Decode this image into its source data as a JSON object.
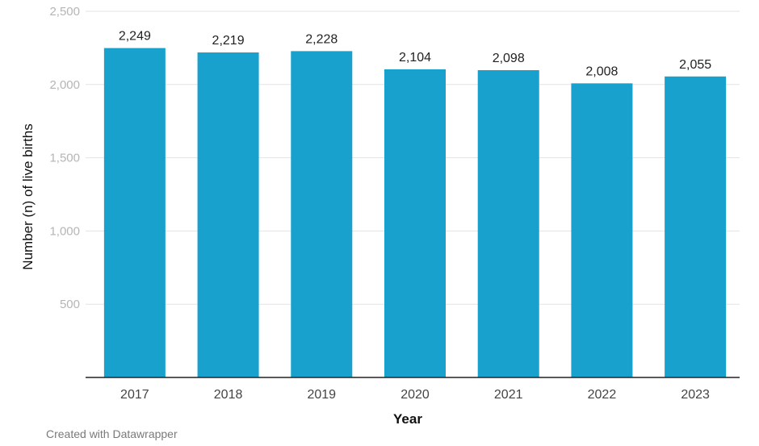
{
  "chart_data": {
    "type": "bar",
    "categories": [
      "2017",
      "2018",
      "2019",
      "2020",
      "2021",
      "2022",
      "2023"
    ],
    "values": [
      2249,
      2219,
      2228,
      2104,
      2098,
      2008,
      2055
    ],
    "data_labels": [
      "2,249",
      "2,219",
      "2,228",
      "2,104",
      "2,098",
      "2,008",
      "2,055"
    ],
    "xlabel": "Year",
    "ylabel": "Number (n) of live births",
    "ylim": [
      0,
      2500
    ],
    "yticks": [
      500,
      1000,
      1500,
      2000,
      2500
    ],
    "ytick_labels": [
      "500",
      "1,000",
      "1,500",
      "2,000",
      "2,500"
    ],
    "grid": true,
    "bar_color": "#18a1cd"
  },
  "footer": {
    "credit": "Created with Datawrapper"
  }
}
